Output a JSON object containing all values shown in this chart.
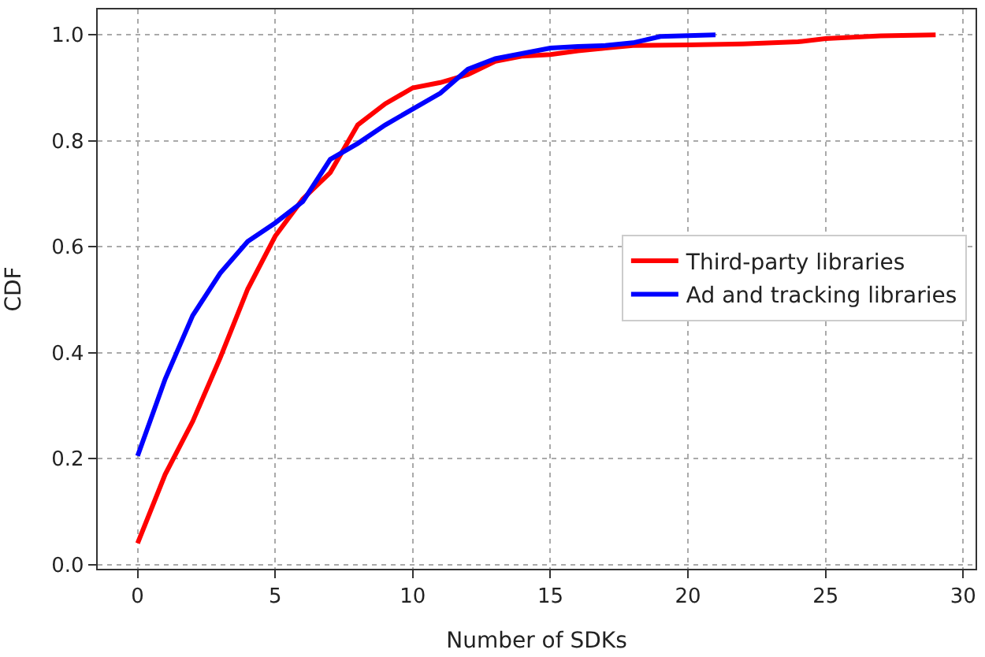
{
  "chart_data": {
    "type": "line",
    "xlabel": "Number of SDKs",
    "ylabel": "CDF",
    "xlim": [
      -1.45,
      30.45
    ],
    "ylim": [
      -0.008,
      1.048
    ],
    "xticks": [
      0,
      5,
      10,
      15,
      20,
      25,
      30
    ],
    "yticks": [
      {
        "value": 0,
        "label": "0.0"
      },
      0.2,
      0.4,
      0.6,
      0.8,
      {
        "value": 1,
        "label": "1.0"
      }
    ],
    "grid": true,
    "legend": "right",
    "line_style": "solid",
    "marker": "none",
    "series": [
      {
        "name": "Third-party libraries",
        "color": "#ff0000",
        "x": [
          0,
          1,
          2,
          3,
          4,
          5,
          6,
          7,
          8,
          9,
          10,
          11,
          12,
          13,
          14,
          15,
          16,
          17,
          18,
          20,
          22,
          24,
          25,
          27,
          29
        ],
        "values": [
          0.04,
          0.17,
          0.27,
          0.39,
          0.52,
          0.62,
          0.69,
          0.74,
          0.83,
          0.87,
          0.9,
          0.91,
          0.925,
          0.95,
          0.96,
          0.963,
          0.97,
          0.975,
          0.98,
          0.981,
          0.983,
          0.987,
          0.993,
          0.998,
          1.0
        ]
      },
      {
        "name": "Ad and tracking libraries",
        "color": "#0000ff",
        "x": [
          0,
          1,
          2,
          3,
          4,
          5,
          6,
          7,
          8,
          9,
          10,
          11,
          12,
          13,
          14,
          15,
          16,
          17,
          18,
          19,
          21
        ],
        "values": [
          0.205,
          0.35,
          0.47,
          0.55,
          0.61,
          0.645,
          0.685,
          0.765,
          0.795,
          0.83,
          0.86,
          0.89,
          0.935,
          0.955,
          0.965,
          0.975,
          0.978,
          0.98,
          0.985,
          0.997,
          1.0
        ]
      }
    ]
  }
}
